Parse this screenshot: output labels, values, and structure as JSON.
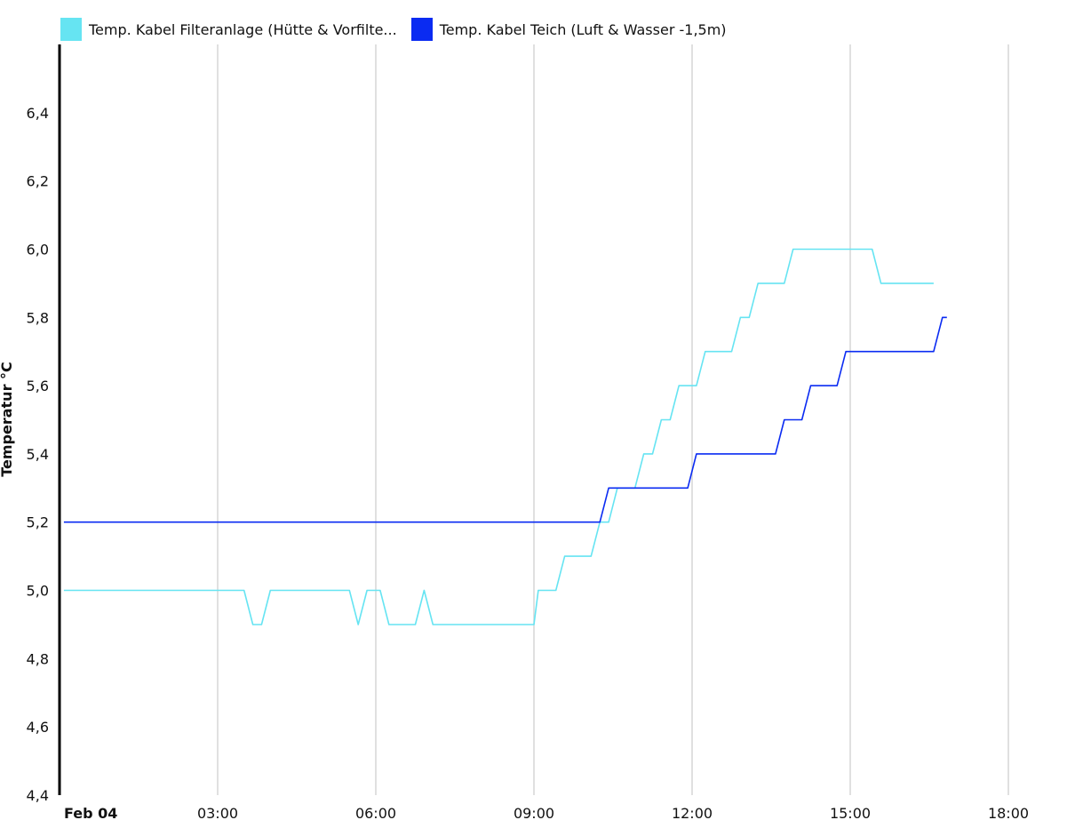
{
  "chart_data": {
    "type": "line",
    "ylabel": "Temperatur °C",
    "ylim": [
      4.4,
      6.6
    ],
    "yticks": [
      "4,4",
      "4,6",
      "4,8",
      "5,0",
      "5,2",
      "5,4",
      "5,6",
      "5,8",
      "6,0",
      "6,2",
      "6,4"
    ],
    "ytick_values": [
      4.4,
      4.6,
      4.8,
      5.0,
      5.2,
      5.4,
      5.6,
      5.8,
      6.0,
      6.2,
      6.4
    ],
    "xlim": [
      "Feb 04 00:00",
      "Feb 04 18:00"
    ],
    "xticks": [
      {
        "label": "Feb 04",
        "time": "00:00",
        "bold": true
      },
      {
        "label": "03:00",
        "time": "03:00",
        "bold": false
      },
      {
        "label": "06:00",
        "time": "06:00",
        "bold": false
      },
      {
        "label": "09:00",
        "time": "09:00",
        "bold": false
      },
      {
        "label": "12:00",
        "time": "12:00",
        "bold": false
      },
      {
        "label": "15:00",
        "time": "15:00",
        "bold": false
      },
      {
        "label": "18:00",
        "time": "18:00",
        "bold": false
      }
    ],
    "grid": "vertical",
    "legend_position": "top-left",
    "series": [
      {
        "name": "Temp. Kabel Filteranlage (Hütte & Vorfilte...",
        "color": "#66e4f2",
        "points": [
          [
            "00:05",
            5.0
          ],
          [
            "03:30",
            5.0
          ],
          [
            "03:40",
            4.9
          ],
          [
            "03:50",
            4.9
          ],
          [
            "04:00",
            5.0
          ],
          [
            "05:30",
            5.0
          ],
          [
            "05:40",
            4.9
          ],
          [
            "05:50",
            5.0
          ],
          [
            "06:05",
            5.0
          ],
          [
            "06:15",
            4.9
          ],
          [
            "06:45",
            4.9
          ],
          [
            "06:55",
            5.0
          ],
          [
            "07:05",
            4.9
          ],
          [
            "09:00",
            4.9
          ],
          [
            "09:05",
            5.0
          ],
          [
            "09:25",
            5.0
          ],
          [
            "09:35",
            5.1
          ],
          [
            "10:05",
            5.1
          ],
          [
            "10:15",
            5.2
          ],
          [
            "10:25",
            5.2
          ],
          [
            "10:35",
            5.3
          ],
          [
            "10:55",
            5.3
          ],
          [
            "11:05",
            5.4
          ],
          [
            "11:15",
            5.4
          ],
          [
            "11:25",
            5.5
          ],
          [
            "11:35",
            5.5
          ],
          [
            "11:45",
            5.6
          ],
          [
            "12:05",
            5.6
          ],
          [
            "12:15",
            5.7
          ],
          [
            "12:45",
            5.7
          ],
          [
            "12:55",
            5.8
          ],
          [
            "13:05",
            5.8
          ],
          [
            "13:15",
            5.9
          ],
          [
            "13:45",
            5.9
          ],
          [
            "13:55",
            6.0
          ],
          [
            "15:25",
            6.0
          ],
          [
            "15:35",
            5.9
          ],
          [
            "16:35",
            5.9
          ]
        ]
      },
      {
        "name": "Temp. Kabel Teich (Luft & Wasser -1,5m)",
        "color": "#0a2bf2",
        "points": [
          [
            "00:05",
            5.2
          ],
          [
            "10:15",
            5.2
          ],
          [
            "10:25",
            5.3
          ],
          [
            "11:55",
            5.3
          ],
          [
            "12:05",
            5.4
          ],
          [
            "13:35",
            5.4
          ],
          [
            "13:45",
            5.5
          ],
          [
            "14:05",
            5.5
          ],
          [
            "14:15",
            5.6
          ],
          [
            "14:45",
            5.6
          ],
          [
            "14:55",
            5.7
          ],
          [
            "16:35",
            5.7
          ],
          [
            "16:45",
            5.8
          ],
          [
            "16:50",
            5.8
          ]
        ]
      }
    ]
  }
}
